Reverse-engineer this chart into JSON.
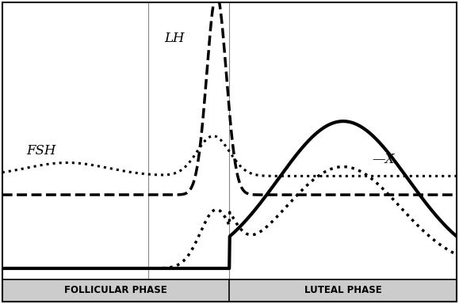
{
  "title": "",
  "background_color": "#ffffff",
  "x_min": 0,
  "x_max": 28,
  "y_min": 0,
  "y_max": 10,
  "follicular_end": 14,
  "ovulation_line1": 9,
  "ovulation_line2": 14,
  "phase_bar_color": "#cccccc",
  "phase_bar_height": 0.6,
  "follicular_label": "FOLLICULAR PHASE",
  "luteal_label": "LUTEAL PHASE",
  "label_FSH": "FSH",
  "label_LH": "LH",
  "label_X": "X",
  "line_color": "#000000"
}
